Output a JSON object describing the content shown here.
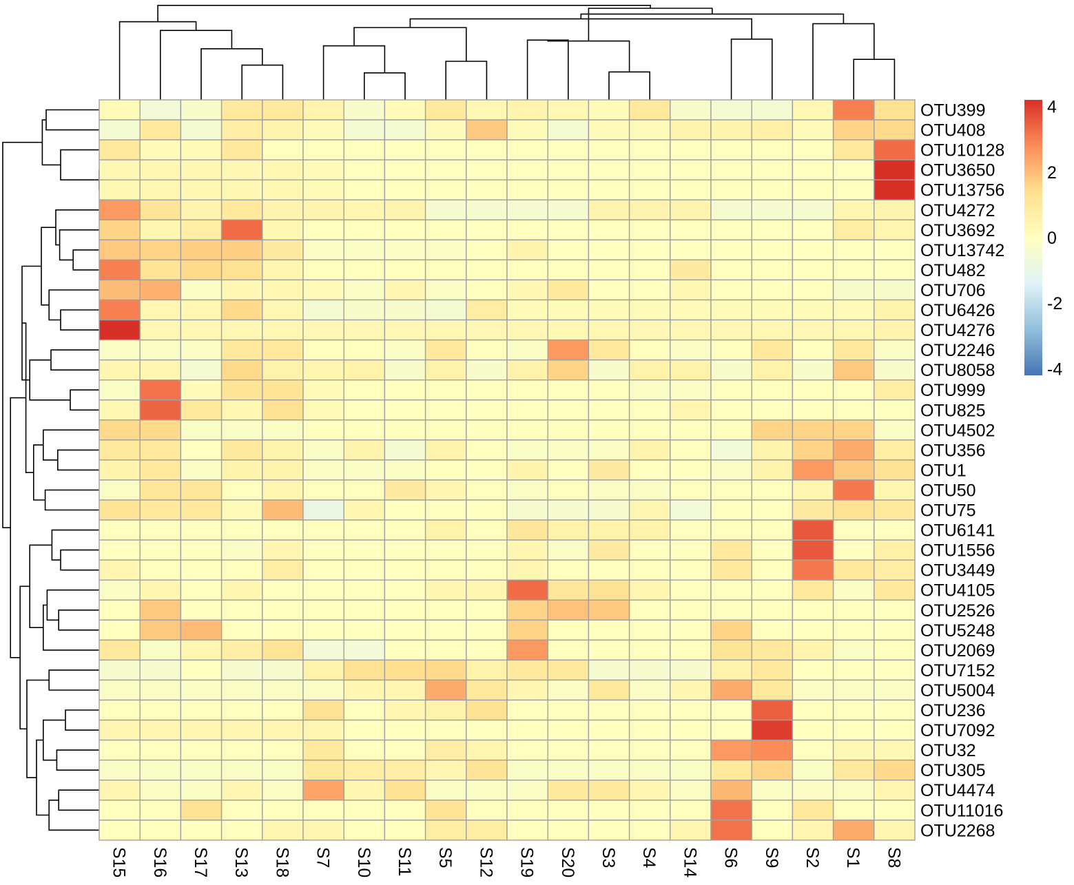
{
  "chart_data": {
    "type": "heatmap",
    "title": "",
    "xlabel": "",
    "ylabel": "",
    "columns": [
      "S15",
      "S16",
      "S17",
      "S13",
      "S18",
      "S7",
      "S10",
      "S11",
      "S5",
      "S12",
      "S19",
      "S20",
      "S3",
      "S4",
      "S14",
      "S6",
      "S9",
      "S2",
      "S1",
      "S8"
    ],
    "rows": [
      "OTU399",
      "OTU408",
      "OTU10128",
      "OTU3650",
      "OTU13756",
      "OTU4272",
      "OTU3692",
      "OTU13742",
      "OTU482",
      "OTU706",
      "OTU6426",
      "OTU4276",
      "OTU2246",
      "OTU8058",
      "OTU999",
      "OTU825",
      "OTU4502",
      "OTU356",
      "OTU1",
      "OTU50",
      "OTU75",
      "OTU6141",
      "OTU1556",
      "OTU3449",
      "OTU4105",
      "OTU2526",
      "OTU5248",
      "OTU2069",
      "OTU7152",
      "OTU5004",
      "OTU236",
      "OTU7092",
      "OTU32",
      "OTU305",
      "OTU4474",
      "OTU11016",
      "OTU2268"
    ],
    "values": [
      [
        0.2,
        -0.6,
        -0.3,
        1.0,
        1.0,
        0.5,
        -0.3,
        0.2,
        1.0,
        0.3,
        0.5,
        0.3,
        0.2,
        1.0,
        -0.3,
        -0.5,
        -0.5,
        0.3,
        3.0,
        1.3
      ],
      [
        -0.5,
        1.0,
        -0.5,
        0.8,
        0.5,
        0.2,
        -0.5,
        -0.5,
        0.2,
        1.8,
        0.2,
        -0.5,
        0.2,
        0.2,
        0.5,
        0.5,
        0.7,
        0.2,
        1.6,
        1.5
      ],
      [
        1.0,
        0.2,
        0.2,
        1.0,
        0.0,
        0.0,
        0.0,
        0.0,
        0.0,
        0.0,
        0.0,
        0.0,
        0.0,
        0.0,
        0.0,
        0.0,
        0.0,
        0.0,
        1.0,
        3.3
      ],
      [
        0.3,
        0.3,
        0.3,
        0.3,
        0.3,
        0.2,
        0.0,
        0.0,
        0.0,
        0.0,
        0.0,
        0.0,
        0.0,
        0.0,
        0.0,
        0.0,
        0.0,
        0.0,
        0.0,
        4.2
      ],
      [
        0.3,
        0.3,
        0.3,
        0.3,
        0.3,
        0.2,
        0.0,
        0.0,
        0.0,
        0.0,
        0.0,
        0.0,
        0.0,
        0.0,
        0.0,
        0.0,
        0.0,
        0.0,
        0.0,
        4.2
      ],
      [
        2.6,
        1.2,
        0.5,
        1.0,
        0.5,
        0.5,
        0.4,
        0.5,
        -0.4,
        -0.4,
        -0.4,
        -0.4,
        0.5,
        0.5,
        0.5,
        -0.4,
        -0.4,
        -0.4,
        0.4,
        0.5
      ],
      [
        1.6,
        0.4,
        0.8,
        3.3,
        0.3,
        0.0,
        0.0,
        0.0,
        0.0,
        0.0,
        0.0,
        0.0,
        0.0,
        0.0,
        0.0,
        0.0,
        0.0,
        0.0,
        0.8,
        0.4
      ],
      [
        1.8,
        1.6,
        1.7,
        1.7,
        0.9,
        -0.2,
        -0.2,
        -0.2,
        -0.2,
        0.0,
        0.5,
        0.0,
        0.0,
        0.0,
        0.0,
        0.0,
        0.0,
        0.0,
        0.0,
        0.0
      ],
      [
        3.0,
        1.2,
        1.5,
        1.3,
        0.4,
        0.0,
        0.0,
        0.0,
        0.0,
        0.0,
        0.0,
        0.0,
        0.0,
        0.0,
        0.9,
        0.0,
        0.0,
        0.0,
        0.0,
        0.0
      ],
      [
        2.0,
        2.2,
        -0.2,
        0.3,
        0.3,
        0.2,
        -0.2,
        0.4,
        -0.2,
        0.0,
        0.3,
        1.0,
        0.0,
        0.0,
        0.3,
        0.0,
        0.0,
        0.0,
        -0.3,
        -0.3
      ],
      [
        3.0,
        0.3,
        0.3,
        1.5,
        0.3,
        -0.5,
        -0.3,
        -0.3,
        -0.5,
        0.8,
        0.2,
        0.2,
        0.2,
        0.2,
        0.2,
        0.2,
        0.2,
        0.2,
        0.2,
        0.5
      ],
      [
        4.2,
        0.3,
        0.3,
        0.3,
        0.3,
        0.3,
        0.3,
        0.3,
        0.3,
        0.3,
        0.3,
        0.3,
        0.3,
        0.3,
        0.3,
        0.3,
        0.3,
        0.3,
        0.3,
        0.5
      ],
      [
        -0.2,
        -0.2,
        -0.2,
        1.0,
        1.0,
        0.0,
        0.0,
        -0.2,
        1.0,
        0.0,
        -0.2,
        2.6,
        1.0,
        0.0,
        -0.2,
        0.0,
        1.0,
        0.0,
        1.0,
        -0.2
      ],
      [
        0.4,
        0.4,
        -0.5,
        1.5,
        0.6,
        0.4,
        0.6,
        -0.3,
        0.6,
        -0.3,
        0.6,
        1.6,
        -0.3,
        0.6,
        0.6,
        -0.3,
        0.6,
        -0.3,
        1.8,
        -0.3
      ],
      [
        -0.2,
        3.2,
        0.2,
        1.2,
        1.2,
        0.2,
        0.0,
        0.0,
        0.0,
        0.0,
        0.0,
        0.0,
        0.0,
        -0.2,
        -0.2,
        0.0,
        0.0,
        0.0,
        0.0,
        0.8
      ],
      [
        0.3,
        3.4,
        1.0,
        0.3,
        1.3,
        0.2,
        0.0,
        0.0,
        0.0,
        0.0,
        0.0,
        0.0,
        0.0,
        0.0,
        0.4,
        0.0,
        0.0,
        0.0,
        0.0,
        0.0
      ],
      [
        1.5,
        1.5,
        -0.2,
        -0.2,
        -0.2,
        0.0,
        0.0,
        0.0,
        0.0,
        0.0,
        0.0,
        0.0,
        0.0,
        0.0,
        0.0,
        0.0,
        1.6,
        1.6,
        1.6,
        -0.2
      ],
      [
        1.0,
        1.0,
        0.0,
        1.0,
        0.5,
        -0.2,
        0.5,
        -0.5,
        0.5,
        0.0,
        -0.2,
        -0.2,
        -0.2,
        0.5,
        0.0,
        -0.6,
        0.5,
        1.6,
        2.3,
        0.8
      ],
      [
        0.5,
        1.0,
        -0.2,
        0.5,
        0.5,
        -0.2,
        -0.2,
        -0.2,
        0.0,
        0.0,
        0.5,
        0.0,
        0.9,
        0.0,
        0.0,
        -0.2,
        0.5,
        2.6,
        1.8,
        1.3
      ],
      [
        -0.2,
        1.1,
        1.1,
        0.0,
        0.4,
        0.0,
        0.0,
        0.9,
        0.4,
        0.0,
        -0.2,
        0.0,
        -0.2,
        -0.2,
        0.0,
        0.0,
        0.0,
        0.4,
        3.1,
        0.4
      ],
      [
        1.2,
        1.0,
        1.0,
        0.2,
        2.0,
        -0.9,
        0.4,
        0.0,
        0.0,
        0.0,
        -0.4,
        -0.4,
        -0.4,
        0.4,
        -0.6,
        0.0,
        0.0,
        0.9,
        1.3,
        1.0
      ],
      [
        0.0,
        0.0,
        0.0,
        0.0,
        0.0,
        0.0,
        0.0,
        0.0,
        0.6,
        0.0,
        1.1,
        0.6,
        0.6,
        0.6,
        0.0,
        0.0,
        0.0,
        3.6,
        0.0,
        0.0
      ],
      [
        0.0,
        0.0,
        0.0,
        -0.2,
        0.4,
        0.0,
        0.0,
        0.0,
        0.0,
        0.0,
        0.4,
        -0.2,
        0.9,
        0.0,
        0.0,
        1.0,
        0.0,
        3.6,
        0.0,
        0.7
      ],
      [
        0.4,
        0.0,
        0.0,
        0.0,
        0.8,
        0.0,
        0.0,
        0.0,
        0.0,
        0.0,
        0.4,
        0.0,
        0.0,
        0.0,
        0.0,
        1.0,
        0.0,
        3.1,
        1.0,
        0.8
      ],
      [
        -0.2,
        0.4,
        0.0,
        0.4,
        0.0,
        0.0,
        0.0,
        0.0,
        0.4,
        0.4,
        3.3,
        1.1,
        1.3,
        0.4,
        0.0,
        0.0,
        0.0,
        1.0,
        -0.2,
        1.0
      ],
      [
        0.0,
        1.8,
        0.0,
        0.0,
        0.0,
        0.0,
        0.0,
        0.0,
        0.0,
        0.0,
        1.6,
        1.9,
        1.8,
        0.0,
        0.0,
        0.0,
        0.0,
        0.0,
        0.0,
        0.0
      ],
      [
        0.0,
        1.8,
        2.0,
        0.0,
        0.0,
        0.0,
        0.0,
        0.0,
        0.0,
        0.0,
        1.6,
        0.0,
        0.0,
        0.0,
        0.0,
        1.6,
        0.0,
        0.0,
        0.0,
        0.0
      ],
      [
        1.0,
        -0.2,
        0.4,
        0.8,
        1.2,
        -0.6,
        -0.6,
        0.0,
        0.0,
        0.0,
        2.6,
        0.0,
        0.0,
        0.0,
        0.0,
        1.2,
        1.0,
        0.5,
        -0.2,
        0.0
      ],
      [
        -0.4,
        -0.4,
        0.0,
        -0.4,
        -0.4,
        0.6,
        1.3,
        1.4,
        1.5,
        0.6,
        1.0,
        1.0,
        -0.4,
        -0.4,
        -0.4,
        0.6,
        1.0,
        0.0,
        0.0,
        0.0
      ],
      [
        -0.2,
        -0.2,
        -0.2,
        -0.2,
        -0.2,
        -0.2,
        0.4,
        0.4,
        2.3,
        1.0,
        0.4,
        -0.2,
        1.0,
        -0.2,
        0.4,
        2.3,
        1.0,
        -0.2,
        -0.2,
        -0.2
      ],
      [
        0.0,
        0.0,
        0.0,
        0.0,
        0.0,
        1.3,
        0.0,
        0.4,
        0.6,
        1.3,
        0.0,
        0.0,
        0.0,
        0.0,
        0.0,
        0.0,
        3.5,
        0.0,
        0.0,
        0.0
      ],
      [
        0.4,
        0.4,
        0.4,
        0.4,
        0.4,
        0.4,
        0.0,
        0.0,
        0.0,
        0.0,
        0.0,
        0.0,
        0.0,
        0.0,
        0.0,
        0.0,
        4.0,
        0.0,
        0.0,
        0.0
      ],
      [
        0.0,
        0.0,
        0.0,
        0.0,
        0.0,
        1.0,
        0.0,
        0.0,
        0.8,
        0.4,
        0.0,
        0.0,
        0.0,
        0.0,
        0.0,
        2.6,
        2.8,
        0.0,
        0.3,
        0.3
      ],
      [
        -0.2,
        -0.2,
        -0.2,
        -0.2,
        -0.2,
        1.0,
        0.8,
        0.8,
        0.4,
        1.2,
        -0.2,
        -0.2,
        -0.2,
        -0.2,
        -0.2,
        1.0,
        1.6,
        -0.2,
        1.0,
        1.5
      ],
      [
        0.4,
        -0.2,
        -0.2,
        0.4,
        -0.2,
        2.4,
        0.4,
        1.3,
        -0.2,
        -0.2,
        -0.2,
        1.0,
        1.0,
        0.4,
        -0.2,
        2.1,
        -0.2,
        -0.2,
        -0.2,
        0.4
      ],
      [
        0.0,
        0.0,
        1.3,
        0.0,
        0.0,
        0.0,
        0.0,
        0.0,
        1.2,
        0.0,
        0.0,
        0.0,
        0.0,
        0.0,
        0.0,
        3.2,
        0.0,
        1.0,
        0.0,
        0.0
      ],
      [
        0.0,
        0.0,
        0.0,
        0.0,
        0.4,
        0.4,
        0.0,
        0.0,
        0.8,
        0.8,
        0.0,
        0.0,
        0.0,
        0.0,
        0.4,
        3.2,
        0.0,
        0.4,
        2.3,
        0.4
      ]
    ],
    "color_scale": {
      "stops": [
        {
          "value": -4.2,
          "color": "#4575b4"
        },
        {
          "value": -2.8,
          "color": "#91bfdb"
        },
        {
          "value": -1.4,
          "color": "#e0f3f8"
        },
        {
          "value": 0.0,
          "color": "#ffffbf"
        },
        {
          "value": 1.4,
          "color": "#fee090"
        },
        {
          "value": 2.8,
          "color": "#fc8d59"
        },
        {
          "value": 4.2,
          "color": "#d73027"
        }
      ],
      "cell_border_color": "#a0a0a0"
    },
    "legend": {
      "placement": "right",
      "tick_labels": [
        "4",
        "2",
        "0",
        "-2",
        "-4"
      ],
      "tick_values": [
        4,
        2,
        0,
        -2,
        -4
      ],
      "range": [
        -4.2,
        4.2
      ]
    },
    "column_dendrogram": true,
    "row_dendrogram": true
  }
}
